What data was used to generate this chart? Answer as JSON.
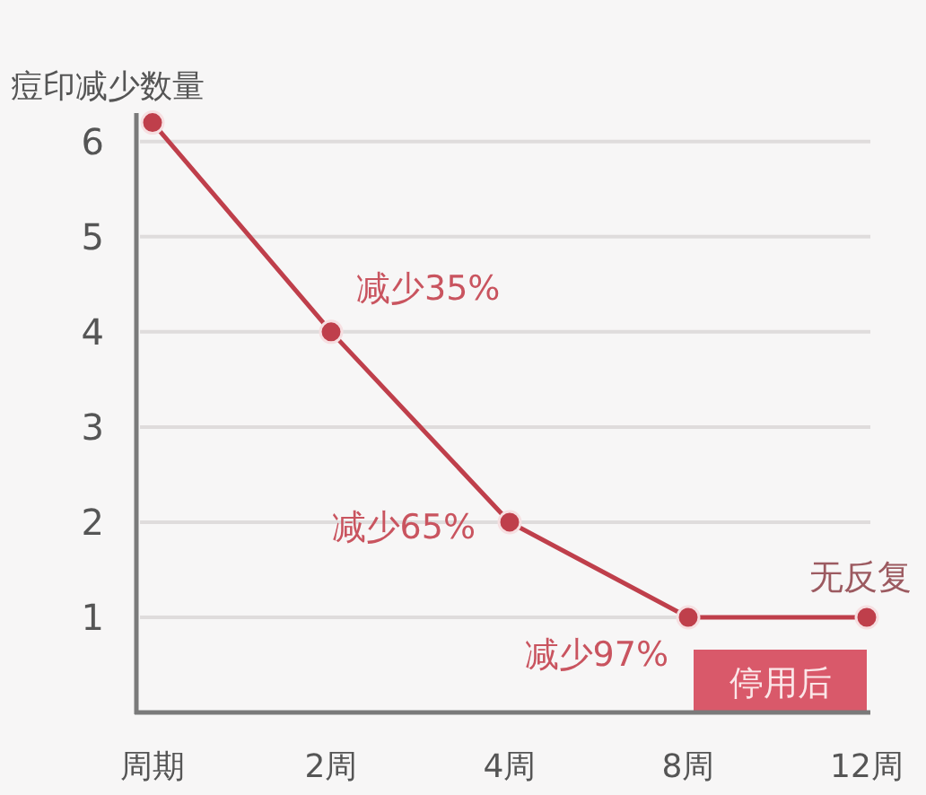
{
  "chart_data": {
    "type": "line",
    "ylabel": "痘印减少数量",
    "categories": [
      "周期",
      "2周",
      "4周",
      "8周",
      "12周"
    ],
    "series": [
      {
        "color": "#bf3f4b",
        "values": [
          6.2,
          4,
          2,
          1,
          1
        ]
      }
    ],
    "ylim": [
      0,
      6.3
    ],
    "yticks": [
      1,
      2,
      3,
      4,
      5,
      6
    ],
    "grid": "y",
    "marker": "circle",
    "line_style": "solid",
    "annotations": [
      {
        "text": "减少35%",
        "x": "2周",
        "y": 4
      },
      {
        "text": "减少65%",
        "x": "4周",
        "y": 2
      },
      {
        "text": "减少97%",
        "x": "8周",
        "y": 1
      },
      {
        "text": "无反复",
        "x": "12周",
        "y": 1
      }
    ],
    "bands": [
      {
        "axis": "x",
        "from": "8周",
        "to": "12周",
        "label": "停用后",
        "color": "#d9596a"
      }
    ]
  }
}
